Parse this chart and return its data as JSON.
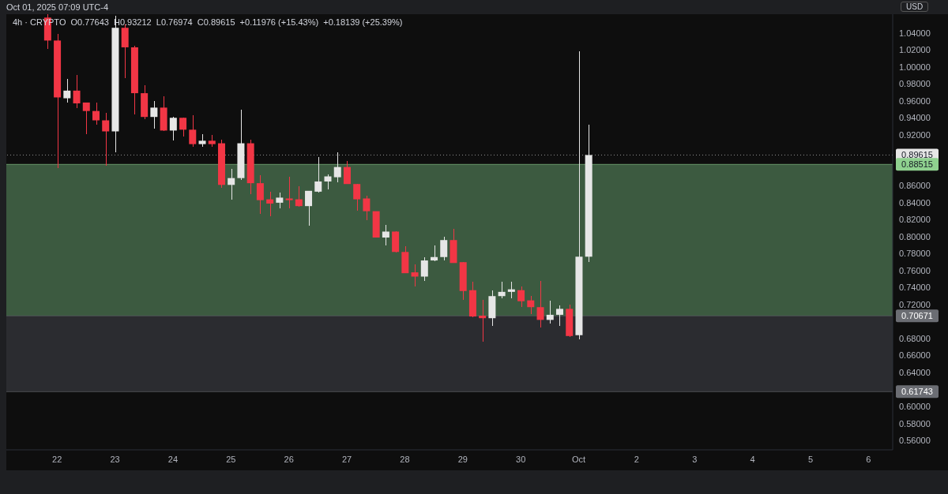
{
  "chart_data": {
    "type": "candlestick",
    "subtitle": "4h · CRYPTO  O0.77643  H0.93212  L0.76974  C0.89615  +0.11976 (+15.43%)  +0.18139 (+25.39%)",
    "annotations": [
      "Oct 01, 2025 07:09 UTC-4"
    ],
    "ylabel": "USD",
    "x": [
      "2025-09-21T20:00",
      "2025-09-22T00:00",
      "2025-09-22T04:00",
      "2025-09-22T08:00",
      "2025-09-22T12:00",
      "2025-09-22T16:00",
      "2025-09-22T20:00",
      "2025-09-23T00:00",
      "2025-09-23T04:00",
      "2025-09-23T08:00",
      "2025-09-23T12:00",
      "2025-09-23T16:00",
      "2025-09-23T20:00",
      "2025-09-24T00:00",
      "2025-09-24T04:00",
      "2025-09-24T08:00",
      "2025-09-24T12:00",
      "2025-09-24T16:00",
      "2025-09-24T20:00",
      "2025-09-25T00:00",
      "2025-09-25T04:00",
      "2025-09-25T08:00",
      "2025-09-25T12:00",
      "2025-09-25T16:00",
      "2025-09-25T20:00",
      "2025-09-26T00:00",
      "2025-09-26T04:00",
      "2025-09-26T08:00",
      "2025-09-26T12:00",
      "2025-09-26T16:00",
      "2025-09-26T20:00",
      "2025-09-27T00:00",
      "2025-09-27T04:00",
      "2025-09-27T08:00",
      "2025-09-27T12:00",
      "2025-09-27T16:00",
      "2025-09-27T20:00",
      "2025-09-28T00:00",
      "2025-09-28T04:00",
      "2025-09-28T08:00",
      "2025-09-28T12:00",
      "2025-09-28T16:00",
      "2025-09-28T20:00",
      "2025-09-29T00:00",
      "2025-09-29T04:00",
      "2025-09-29T08:00",
      "2025-09-29T12:00",
      "2025-09-29T16:00",
      "2025-09-29T20:00",
      "2025-09-30T00:00",
      "2025-09-30T04:00",
      "2025-09-30T08:00",
      "2025-09-30T12:00",
      "2025-09-30T16:00",
      "2025-09-30T20:00",
      "2025-10-01T00:00",
      "2025-10-01T04:00"
    ],
    "ohlc": [
      [
        1.058,
        1.062,
        1.021,
        1.031
      ],
      [
        1.031,
        1.039,
        0.881,
        0.964
      ],
      [
        0.963,
        0.986,
        0.958,
        0.972
      ],
      [
        0.972,
        0.99,
        0.951,
        0.957
      ],
      [
        0.958,
        0.958,
        0.921,
        0.948
      ],
      [
        0.948,
        0.958,
        0.932,
        0.937
      ],
      [
        0.937,
        0.946,
        0.884,
        0.924
      ],
      [
        0.924,
        1.06,
        0.899,
        1.046
      ],
      [
        1.046,
        1.05,
        0.987,
        1.023
      ],
      [
        1.023,
        1.025,
        0.944,
        0.969
      ],
      [
        0.969,
        0.978,
        0.938,
        0.941
      ],
      [
        0.941,
        0.96,
        0.927,
        0.952
      ],
      [
        0.952,
        0.965,
        0.924,
        0.925
      ],
      [
        0.925,
        0.941,
        0.913,
        0.94
      ],
      [
        0.94,
        0.94,
        0.918,
        0.926
      ],
      [
        0.926,
        0.943,
        0.906,
        0.909
      ],
      [
        0.909,
        0.921,
        0.906,
        0.913
      ],
      [
        0.913,
        0.92,
        0.906,
        0.909
      ],
      [
        0.91,
        0.914,
        0.858,
        0.861
      ],
      [
        0.861,
        0.88,
        0.844,
        0.869
      ],
      [
        0.869,
        0.95,
        0.867,
        0.91
      ],
      [
        0.91,
        0.914,
        0.85,
        0.863
      ],
      [
        0.863,
        0.872,
        0.827,
        0.843
      ],
      [
        0.844,
        0.853,
        0.824,
        0.839
      ],
      [
        0.84,
        0.852,
        0.833,
        0.846
      ],
      [
        0.845,
        0.871,
        0.833,
        0.843
      ],
      [
        0.844,
        0.859,
        0.835,
        0.836
      ],
      [
        0.836,
        0.854,
        0.813,
        0.854
      ],
      [
        0.853,
        0.894,
        0.852,
        0.865
      ],
      [
        0.865,
        0.873,
        0.856,
        0.871
      ],
      [
        0.87,
        0.899,
        0.864,
        0.882
      ],
      [
        0.882,
        0.889,
        0.862,
        0.862
      ],
      [
        0.862,
        0.862,
        0.831,
        0.844
      ],
      [
        0.845,
        0.848,
        0.819,
        0.83
      ],
      [
        0.83,
        0.83,
        0.799,
        0.799
      ],
      [
        0.799,
        0.814,
        0.79,
        0.806
      ],
      [
        0.806,
        0.806,
        0.781,
        0.782
      ],
      [
        0.782,
        0.789,
        0.757,
        0.757
      ],
      [
        0.758,
        0.767,
        0.741,
        0.753
      ],
      [
        0.753,
        0.776,
        0.748,
        0.772
      ],
      [
        0.772,
        0.79,
        0.771,
        0.776
      ],
      [
        0.776,
        0.8,
        0.772,
        0.796
      ],
      [
        0.796,
        0.809,
        0.769,
        0.769
      ],
      [
        0.77,
        0.77,
        0.726,
        0.736
      ],
      [
        0.737,
        0.747,
        0.705,
        0.706
      ],
      [
        0.707,
        0.726,
        0.676,
        0.704
      ],
      [
        0.704,
        0.737,
        0.695,
        0.73
      ],
      [
        0.73,
        0.747,
        0.727,
        0.735
      ],
      [
        0.735,
        0.747,
        0.727,
        0.738
      ],
      [
        0.737,
        0.741,
        0.717,
        0.724
      ],
      [
        0.725,
        0.73,
        0.709,
        0.717
      ],
      [
        0.717,
        0.748,
        0.693,
        0.702
      ],
      [
        0.702,
        0.725,
        0.698,
        0.708
      ],
      [
        0.708,
        0.719,
        0.695,
        0.715
      ],
      [
        0.715,
        0.72,
        0.682,
        0.683
      ],
      [
        0.684,
        1.018,
        0.679,
        0.77643
      ],
      [
        0.77643,
        0.93212,
        0.76974,
        0.89615
      ]
    ],
    "colors": [
      "#f23645",
      "#f23645",
      "#e6e6e6",
      "#f23645",
      "#f23645",
      "#f23645",
      "#f23645",
      "#e6e6e6",
      "#f23645",
      "#f23645",
      "#f23645",
      "#e6e6e6",
      "#f23645",
      "#e6e6e6",
      "#f23645",
      "#f23645",
      "#e6e6e6",
      "#f23645",
      "#f23645",
      "#e6e6e6",
      "#e6e6e6",
      "#f23645",
      "#f23645",
      "#f23645",
      "#e6e6e6",
      "#f23645",
      "#f23645",
      "#e6e6e6",
      "#e6e6e6",
      "#e6e6e6",
      "#e6e6e6",
      "#f23645",
      "#f23645",
      "#f23645",
      "#f23645",
      "#e6e6e6",
      "#f23645",
      "#f23645",
      "#f23645",
      "#e6e6e6",
      "#e6e6e6",
      "#e6e6e6",
      "#f23645",
      "#f23645",
      "#f23645",
      "#f23645",
      "#e6e6e6",
      "#e6e6e6",
      "#e6e6e6",
      "#f23645",
      "#f23645",
      "#f23645",
      "#e6e6e6",
      "#e6e6e6",
      "#f23645",
      "#e6e6e6",
      "#e6e6e6"
    ],
    "xlim": [
      "2025-09-21T03:00",
      "2025-10-06T10:00"
    ],
    "xticks": [
      {
        "value": "2025-09-22",
        "label": "22"
      },
      {
        "value": "2025-09-23",
        "label": "23"
      },
      {
        "value": "2025-09-24",
        "label": "24"
      },
      {
        "value": "2025-09-25",
        "label": "25"
      },
      {
        "value": "2025-09-26",
        "label": "26"
      },
      {
        "value": "2025-09-27",
        "label": "27"
      },
      {
        "value": "2025-09-28",
        "label": "28"
      },
      {
        "value": "2025-09-29",
        "label": "29"
      },
      {
        "value": "2025-09-30",
        "label": "30"
      },
      {
        "value": "2025-10-01",
        "label": "Oct"
      },
      {
        "value": "2025-10-02",
        "label": "2"
      },
      {
        "value": "2025-10-03",
        "label": "3"
      },
      {
        "value": "2025-10-04",
        "label": "4"
      },
      {
        "value": "2025-10-05",
        "label": "5"
      },
      {
        "value": "2025-10-06",
        "label": "6"
      }
    ],
    "ylim": [
      0.549,
      1.062
    ],
    "yticks": [
      {
        "value": 0.56,
        "label": "0.56000"
      },
      {
        "value": 0.58,
        "label": "0.58000"
      },
      {
        "value": 0.6,
        "label": "0.60000"
      },
      {
        "value": 0.64,
        "label": "0.64000"
      },
      {
        "value": 0.66,
        "label": "0.66000"
      },
      {
        "value": 0.68,
        "label": "0.68000"
      },
      {
        "value": 0.72,
        "label": "0.72000"
      },
      {
        "value": 0.74,
        "label": "0.74000"
      },
      {
        "value": 0.76,
        "label": "0.76000"
      },
      {
        "value": 0.78,
        "label": "0.78000"
      },
      {
        "value": 0.8,
        "label": "0.80000"
      },
      {
        "value": 0.82,
        "label": "0.82000"
      },
      {
        "value": 0.84,
        "label": "0.84000"
      },
      {
        "value": 0.86,
        "label": "0.86000"
      },
      {
        "value": 0.92,
        "label": "0.92000"
      },
      {
        "value": 0.94,
        "label": "0.94000"
      },
      {
        "value": 0.96,
        "label": "0.96000"
      },
      {
        "value": 0.98,
        "label": "0.98000"
      },
      {
        "value": 1.0,
        "label": "1.00000"
      },
      {
        "value": 1.02,
        "label": "1.02000"
      },
      {
        "value": 1.04,
        "label": "1.04000"
      }
    ],
    "bands": [
      {
        "axis": "y",
        "from": 0.70671,
        "to": 0.88515,
        "color": "#3c5a40"
      },
      {
        "axis": "y",
        "from": 0.61743,
        "to": 0.70671,
        "color": "#2b2c30"
      }
    ],
    "ref_lines": [
      {
        "axis": "y",
        "value": 0.89615,
        "label": "0.89615",
        "color": "#e6e6e6",
        "line_style": "dotted"
      },
      {
        "axis": "y",
        "value": 0.88515,
        "label": "0.88515",
        "color": "#8fd18f",
        "line_style": "solid"
      },
      {
        "axis": "y",
        "value": 0.70671,
        "label": "0.70671",
        "color": "#6b6d73",
        "line_style": "solid"
      },
      {
        "axis": "y",
        "value": 0.61743,
        "label": "0.61743",
        "color": "#6b6d73",
        "line_style": "solid"
      }
    ]
  }
}
